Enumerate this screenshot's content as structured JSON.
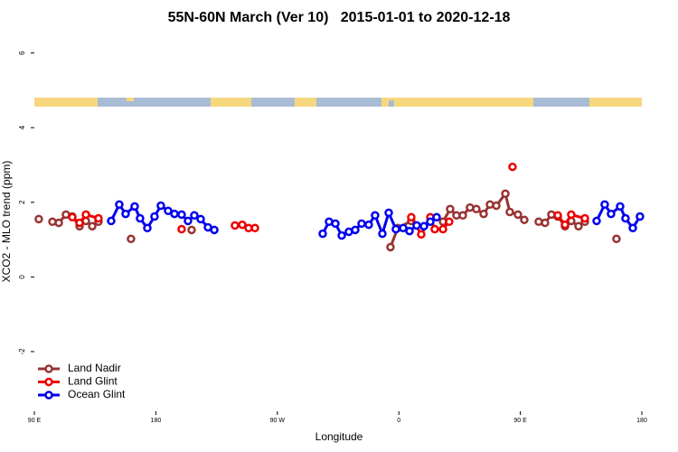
{
  "chart_data": {
    "type": "line",
    "title": "55N-60N March (Ver 10)   2015-01-01 to 2020-12-18",
    "xlabel": "Longitude",
    "ylabel": "XCO2 - MLO trend (ppm)",
    "xlim": [
      90,
      540
    ],
    "xticks": [
      {
        "value": 90,
        "label": "90 E"
      },
      {
        "value": 180,
        "label": "180"
      },
      {
        "value": 270,
        "label": "90 W"
      },
      {
        "value": 360,
        "label": "0"
      },
      {
        "value": 450,
        "label": "90 E"
      },
      {
        "value": 540,
        "label": "180"
      }
    ],
    "ylim": [
      -3.6,
      6.5
    ],
    "yticks": [
      6,
      4,
      2,
      0,
      -2
    ],
    "legend": "bottom-left",
    "series": [
      {
        "name": "Land Nadir",
        "color": "#993333",
        "x": [
          93.3,
          null,
          103.4,
          108.1,
          113.4,
          118.1,
          123.5,
          128.2,
          132.9,
          137.5,
          null,
          161.6,
          null,
          206.5,
          null,
          353.8,
          359.2,
          369.2,
          null,
          392.7,
          398.0,
          402.7,
          407.4,
          412.7,
          417.4,
          422.8,
          427.5,
          432.2,
          438.9,
          442.2,
          448.2,
          452.9,
          null,
          463.6,
          468.3,
          473.0,
          477.7,
          483.1,
          487.7,
          493.1,
          497.8,
          null,
          521.2
        ],
        "values": [
          1.55,
          null,
          1.48,
          1.45,
          1.67,
          1.62,
          1.36,
          1.5,
          1.36,
          1.48,
          null,
          1.02,
          null,
          1.26,
          null,
          0.8,
          1.31,
          1.5,
          null,
          1.48,
          1.82,
          1.65,
          1.65,
          1.86,
          1.82,
          1.69,
          1.94,
          1.91,
          2.23,
          1.74,
          1.67,
          1.53,
          null,
          1.48,
          1.45,
          1.67,
          1.62,
          1.36,
          1.5,
          1.36,
          1.48,
          null,
          1.02
        ]
      },
      {
        "name": "Land Glint",
        "color": "#ee0000",
        "x": [
          118.1,
          123.5,
          128.2,
          137.5,
          null,
          199.1,
          null,
          238.6,
          244.0,
          248.7,
          253.4,
          null,
          369.2,
          376.6,
          383.3,
          386.6,
          392.7,
          397.3,
          null,
          444.2,
          null,
          477.7,
          483.1,
          487.7,
          497.8
        ],
        "values": [
          1.6,
          1.45,
          1.67,
          1.57,
          null,
          1.28,
          null,
          1.38,
          1.4,
          1.31,
          1.31,
          null,
          1.6,
          1.14,
          1.6,
          1.28,
          1.28,
          1.48,
          null,
          2.95,
          null,
          1.65,
          1.4,
          1.67,
          1.57
        ]
      },
      {
        "name": "Ocean Glint",
        "color": "#0000ee",
        "x": [
          146.9,
          152.9,
          157.6,
          164.3,
          168.3,
          173.7,
          179.0,
          183.7,
          189.1,
          193.8,
          199.1,
          203.8,
          208.5,
          213.2,
          218.6,
          223.3,
          null,
          303.6,
          308.3,
          313.0,
          317.7,
          323.0,
          327.7,
          332.4,
          337.7,
          342.4,
          347.8,
          352.5,
          357.8,
          363.2,
          367.9,
          373.2,
          378.6,
          383.3,
          388.0,
          null,
          506.5,
          512.5,
          517.2,
          523.9,
          527.9,
          533.3,
          538.6
        ],
        "values": [
          1.5,
          1.94,
          1.69,
          1.89,
          1.57,
          1.31,
          1.62,
          1.91,
          1.77,
          1.69,
          1.67,
          1.5,
          1.65,
          1.55,
          1.33,
          1.26,
          null,
          1.16,
          1.48,
          1.43,
          1.11,
          1.21,
          1.26,
          1.43,
          1.4,
          1.65,
          1.16,
          1.72,
          1.28,
          1.31,
          1.23,
          1.38,
          1.36,
          1.48,
          1.6,
          null,
          1.5,
          1.94,
          1.69,
          1.89,
          1.57,
          1.31,
          1.62
        ]
      }
    ]
  }
}
